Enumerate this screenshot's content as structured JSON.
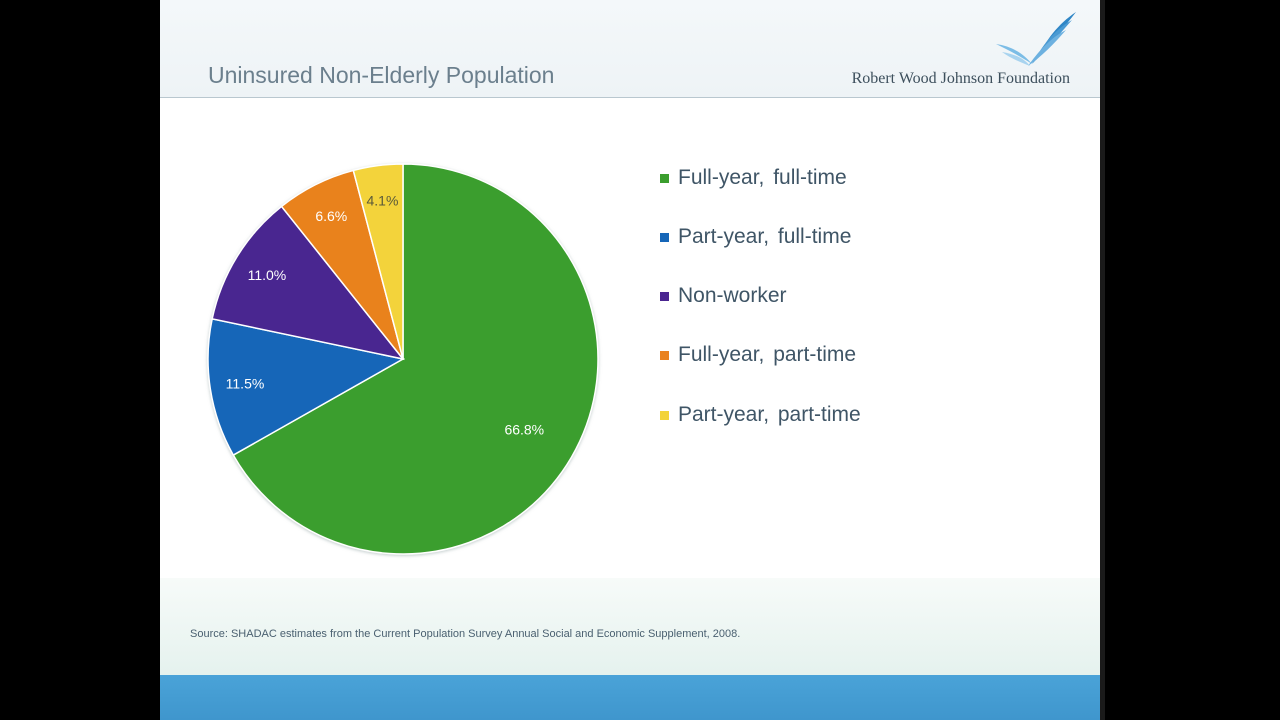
{
  "slide": {
    "title": "Uninsured Non-Elderly Population",
    "logo_text": "Robert Wood Johnson Foundation",
    "source": "Source: SHADAC estimates from the Current Population Survey Annual Social and Economic Supplement, 2008."
  },
  "chart_data": {
    "type": "pie",
    "title": "Uninsured Non-Elderly Population",
    "legend_placement": "right",
    "series": [
      {
        "name": "Full-year, full-time",
        "value": 66.8,
        "label": "66.8%",
        "color": "#3b9e2e"
      },
      {
        "name": "Part-year, full-time",
        "value": 11.5,
        "label": "11.5%",
        "color": "#1666b8"
      },
      {
        "name": "Non-worker",
        "value": 11.0,
        "label": "11.0%",
        "color": "#4a2590"
      },
      {
        "name": "Full-year, part-time",
        "value": 6.6,
        "label": "6.6%",
        "color": "#e9821f"
      },
      {
        "name": "Part-year, part-time",
        "value": 4.1,
        "label": "4.1%",
        "color": "#f3d33a"
      }
    ]
  }
}
